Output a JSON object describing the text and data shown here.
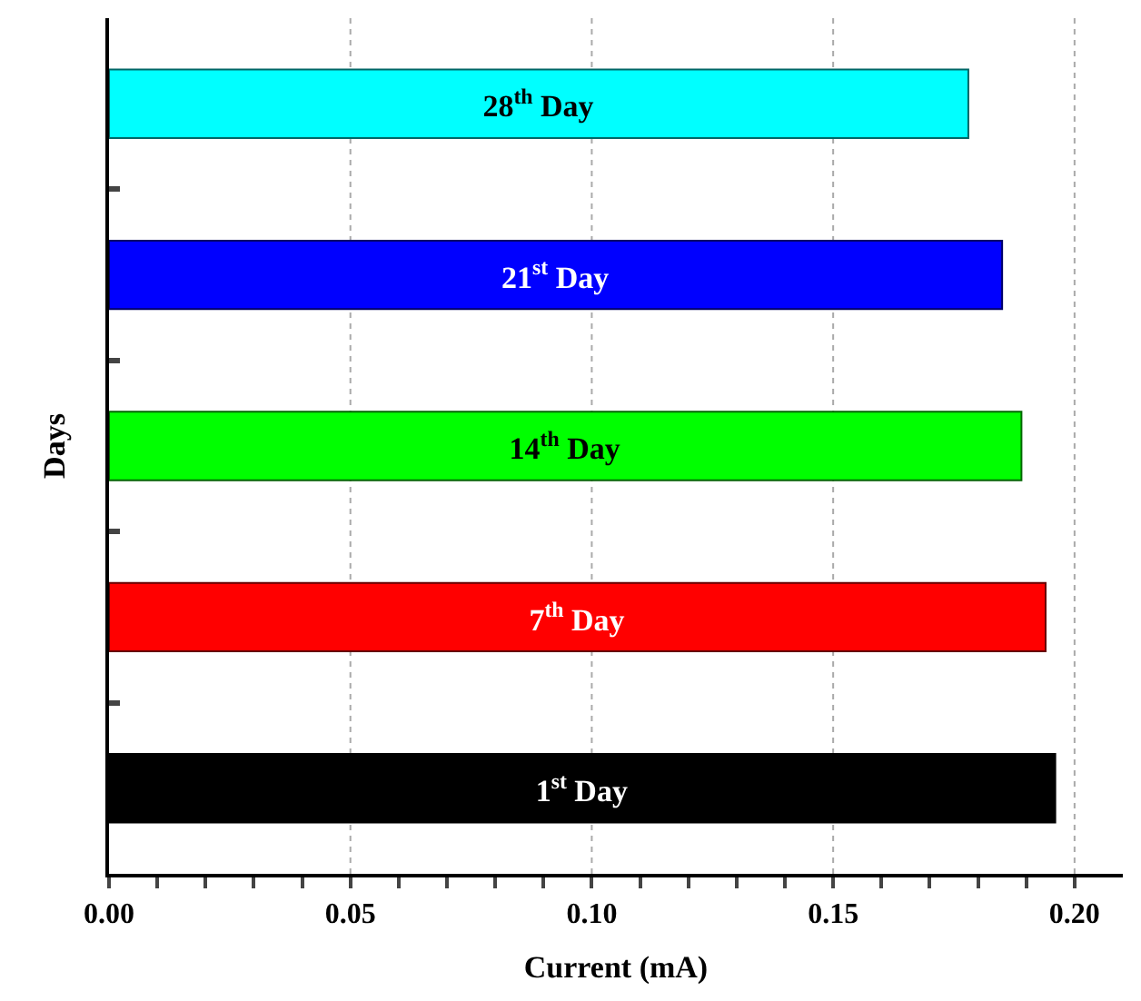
{
  "chart_data": {
    "type": "bar",
    "orientation": "horizontal",
    "xlabel": "Current (mA)",
    "ylabel": "Days",
    "categories": [
      "28$^{th}$ Day",
      "21$^{st}$ Day",
      "14$^{th}$ Day",
      "7$^{th}$ Day",
      "1$^{st}$ Day"
    ],
    "values": [
      0.178,
      0.185,
      0.189,
      0.194,
      0.196
    ],
    "colors": [
      "#00ffff",
      "#0000ff",
      "#00ff00",
      "#ff0000",
      "#000000"
    ],
    "xlim": [
      0,
      0.21
    ],
    "xticks": [
      {
        "value": 0,
        "label": "0.00"
      },
      {
        "value": 0.01,
        "label": null
      },
      {
        "value": 0.02,
        "label": null
      },
      {
        "value": 0.03,
        "label": null
      },
      {
        "value": 0.04,
        "label": null
      },
      0.05,
      {
        "value": 0.06,
        "label": null
      },
      {
        "value": 0.07,
        "label": null
      },
      {
        "value": 0.08,
        "label": null
      },
      {
        "value": 0.09,
        "label": null
      },
      {
        "value": 0.1,
        "label": "0.10"
      },
      {
        "value": 0.11,
        "label": null
      },
      {
        "value": 0.12,
        "label": null
      },
      {
        "value": 0.13,
        "label": null
      },
      {
        "value": 0.14,
        "label": null
      },
      0.15,
      {
        "value": 0.16,
        "label": null
      },
      {
        "value": 0.17,
        "label": null
      },
      {
        "value": 0.18,
        "label": null
      },
      {
        "value": 0.19,
        "label": null
      },
      {
        "value": 0.2,
        "label": "0.20"
      }
    ],
    "grid": "x",
    "tick_labels": "x"
  }
}
